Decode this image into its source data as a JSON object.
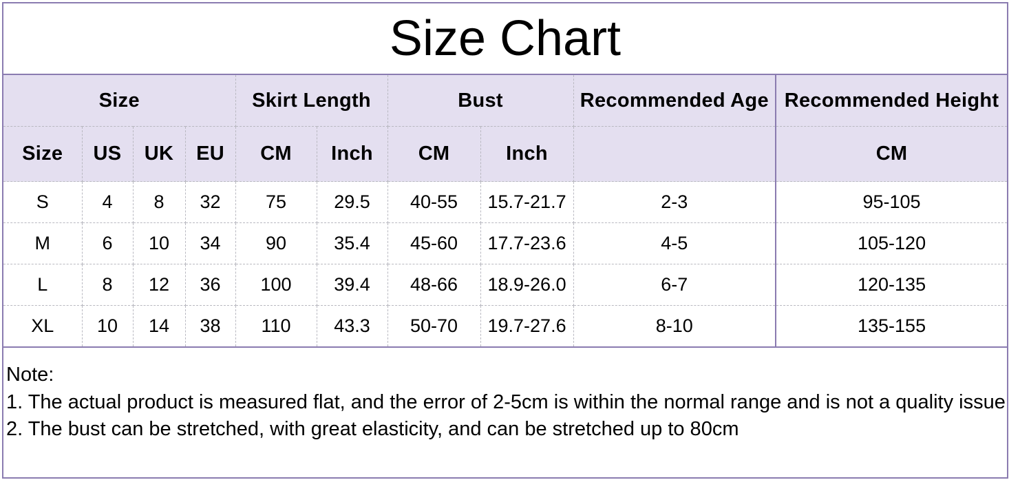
{
  "title": "Size Chart",
  "header_groups": [
    "Size",
    "Skirt Length",
    "Bust",
    "Recommended Age",
    "Recommended Height"
  ],
  "sub_headers": [
    "Size",
    "US",
    "UK",
    "EU",
    "CM",
    "Inch",
    "CM",
    "Inch",
    "",
    "CM"
  ],
  "rows": [
    [
      "S",
      "4",
      "8",
      "32",
      "75",
      "29.5",
      "40-55",
      "15.7-21.7",
      "2-3",
      "95-105"
    ],
    [
      "M",
      "6",
      "10",
      "34",
      "90",
      "35.4",
      "45-60",
      "17.7-23.6",
      "4-5",
      "105-120"
    ],
    [
      "L",
      "8",
      "12",
      "36",
      "100",
      "39.4",
      "48-66",
      "18.9-26.0",
      "6-7",
      "120-135"
    ],
    [
      "XL",
      "10",
      "14",
      "38",
      "110",
      "43.3",
      "50-70",
      "19.7-27.6",
      "8-10",
      "135-155"
    ]
  ],
  "notes": [
    "Note:",
    "1. The actual product is measured flat, and the error of 2-5cm is within the normal range and is not a quality issue",
    "2. The bust can be stretched, with great elasticity, and can be stretched up to 80cm"
  ],
  "colors": {
    "header_bg": "#e4dff0",
    "border": "#8a7bb0"
  }
}
